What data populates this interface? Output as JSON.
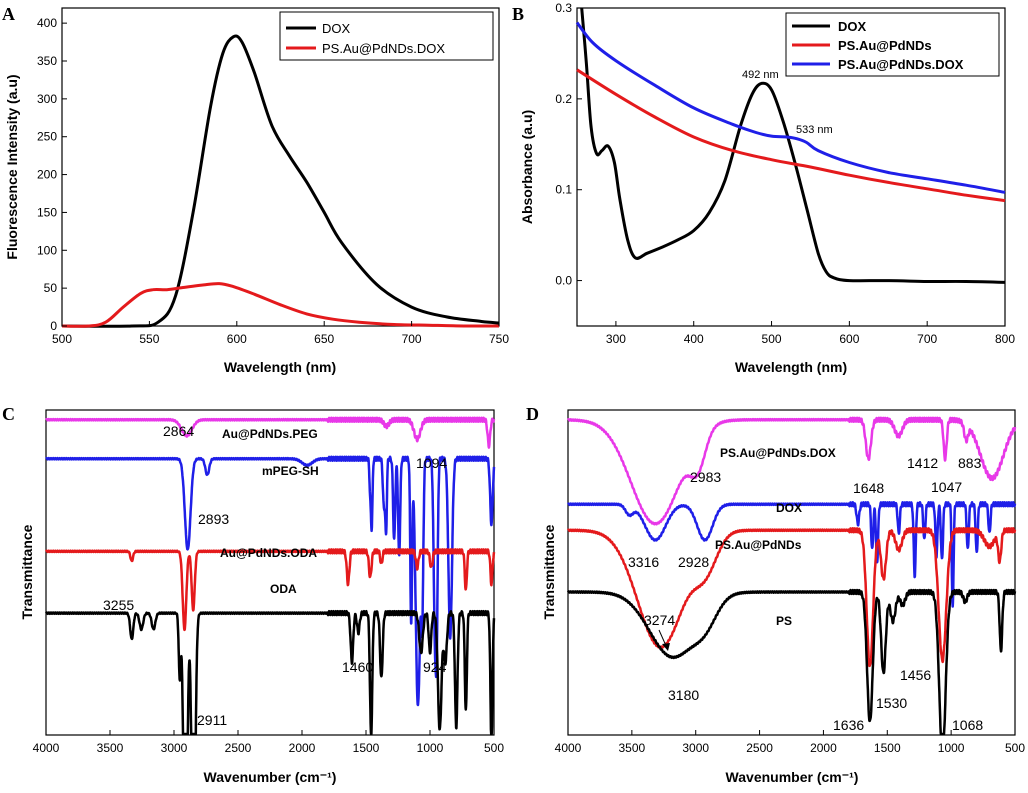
{
  "colors": {
    "black": "#000000",
    "red": "#e41a1c",
    "blue": "#1f1fe8",
    "magenta": "#e838e8"
  },
  "chart_data": [
    {
      "panel": "A",
      "type": "line",
      "xlabel": "Wavelength (nm)",
      "ylabel": "Fluorescence Intensity (a.u)",
      "xlim": [
        500,
        750
      ],
      "ylim": [
        0,
        420
      ],
      "xticks": [
        500,
        550,
        600,
        650,
        700,
        750
      ],
      "yticks": [
        0,
        50,
        100,
        150,
        200,
        250,
        300,
        350,
        400
      ],
      "legend": [
        "DOX",
        "PS.Au@PdNDs.DOX"
      ],
      "legend_position": "top-right",
      "series": [
        {
          "name": "DOX",
          "color": "#000000",
          "x": [
            500,
            540,
            555,
            565,
            575,
            585,
            592,
            598,
            603,
            610,
            620,
            630,
            640,
            650,
            660,
            680,
            700,
            720,
            740,
            750
          ],
          "y": [
            0,
            0,
            5,
            40,
            150,
            290,
            360,
            382,
            375,
            335,
            265,
            225,
            190,
            150,
            110,
            55,
            25,
            12,
            6,
            4
          ]
        },
        {
          "name": "PS.Au@PdNDs.DOX",
          "color": "#e41a1c",
          "x": [
            500,
            515,
            525,
            535,
            545,
            552,
            560,
            570,
            580,
            590,
            598,
            610,
            625,
            640,
            655,
            670,
            690,
            710,
            730,
            750
          ],
          "y": [
            0,
            0,
            5,
            25,
            43,
            48,
            48,
            51,
            54,
            56,
            52,
            42,
            28,
            16,
            9,
            5,
            2,
            1,
            0,
            0
          ]
        }
      ]
    },
    {
      "panel": "B",
      "type": "line",
      "xlabel": "Wavelength (nm)",
      "ylabel": "Absorbance (a.u)",
      "xlim": [
        250,
        800
      ],
      "ylim": [
        -0.05,
        0.3
      ],
      "xticks": [
        300,
        400,
        500,
        600,
        700,
        800
      ],
      "yticks": [
        0.0,
        0.1,
        0.2,
        0.3
      ],
      "ytick_labels": [
        "0.0",
        "0.1",
        "0.2",
        "0.3"
      ],
      "legend": [
        "DOX",
        "PS.Au@PdNDs",
        "PS.Au@PdNDs.DOX"
      ],
      "legend_position": "top-right",
      "annotations": [
        "492 nm",
        "533 nm"
      ],
      "series": [
        {
          "name": "DOX",
          "color": "#000000",
          "x": [
            256,
            262,
            268,
            275,
            282,
            290,
            298,
            305,
            315,
            325,
            340,
            360,
            380,
            400,
            420,
            440,
            460,
            475,
            487,
            500,
            515,
            530,
            545,
            560,
            570,
            580,
            600,
            650,
            700,
            750,
            800
          ],
          "y": [
            0.3,
            0.24,
            0.17,
            0.14,
            0.143,
            0.148,
            0.13,
            0.09,
            0.045,
            0.025,
            0.03,
            0.037,
            0.045,
            0.055,
            0.075,
            0.11,
            0.17,
            0.205,
            0.217,
            0.21,
            0.175,
            0.13,
            0.08,
            0.03,
            0.01,
            0.003,
            0.0,
            0.0,
            -0.001,
            -0.001,
            -0.002
          ]
        },
        {
          "name": "PS.Au@PdNDs",
          "color": "#e41a1c",
          "x": [
            250,
            300,
            350,
            400,
            450,
            500,
            550,
            600,
            650,
            700,
            750,
            800
          ],
          "y": [
            0.232,
            0.205,
            0.18,
            0.158,
            0.143,
            0.133,
            0.125,
            0.116,
            0.108,
            0.101,
            0.094,
            0.088
          ]
        },
        {
          "name": "PS.Au@PdNDs.DOX",
          "color": "#1f1fe8",
          "x": [
            250,
            270,
            300,
            350,
            400,
            450,
            480,
            500,
            520,
            533,
            545,
            560,
            600,
            650,
            700,
            750,
            800
          ],
          "y": [
            0.284,
            0.262,
            0.242,
            0.215,
            0.19,
            0.172,
            0.163,
            0.159,
            0.158,
            0.156,
            0.152,
            0.143,
            0.13,
            0.119,
            0.112,
            0.105,
            0.097
          ]
        }
      ]
    },
    {
      "panel": "C",
      "type": "line",
      "xlabel": "Wavenumber (cm⁻¹)",
      "ylabel": "Transmittance",
      "xlim": [
        4000,
        500
      ],
      "xticks": [
        4000,
        3500,
        3000,
        2500,
        2000,
        1500,
        1000,
        500
      ],
      "curve_labels": [
        "Au@PdNDs.PEG",
        "mPEG-SH",
        "Au@PdNDs.ODA",
        "ODA"
      ],
      "annotations": [
        "2864",
        "1094",
        "2893",
        "3255",
        "1460",
        "924",
        "2911"
      ],
      "series": [
        {
          "name": "Au@PdNDs.PEG",
          "color": "#e838e8",
          "baseline": 0.97,
          "dips": [
            {
              "x": 2900,
              "d": 0.05,
              "w": 40
            },
            {
              "x": 1100,
              "d": 0.06,
              "w": 25
            },
            {
              "x": 1340,
              "d": 0.02,
              "w": 20
            },
            {
              "x": 540,
              "d": 0.08,
              "w": 10
            }
          ]
        },
        {
          "name": "mPEG-SH",
          "color": "#1f1fe8",
          "baseline": 0.85,
          "dips": [
            {
              "x": 2893,
              "d": 0.28,
              "w": 22
            },
            {
              "x": 2740,
              "d": 0.05,
              "w": 15
            },
            {
              "x": 1960,
              "d": 0.02,
              "w": 40
            },
            {
              "x": 1467,
              "d": 0.1,
              "w": 6
            },
            {
              "x": 1455,
              "d": 0.2,
              "w": 6
            },
            {
              "x": 1360,
              "d": 0.15,
              "w": 8
            },
            {
              "x": 1343,
              "d": 0.22,
              "w": 6
            },
            {
              "x": 1280,
              "d": 0.25,
              "w": 8
            },
            {
              "x": 1241,
              "d": 0.3,
              "w": 8
            },
            {
              "x": 1147,
              "d": 0.5,
              "w": 7
            },
            {
              "x": 1094,
              "d": 0.76,
              "w": 18
            },
            {
              "x": 1060,
              "d": 0.4,
              "w": 8
            },
            {
              "x": 962,
              "d": 0.5,
              "w": 10
            },
            {
              "x": 947,
              "d": 0.45,
              "w": 8
            },
            {
              "x": 842,
              "d": 0.55,
              "w": 14
            },
            {
              "x": 520,
              "d": 0.2,
              "w": 10
            }
          ]
        },
        {
          "name": "Au@PdNDs.ODA",
          "color": "#e41a1c",
          "baseline": 0.565,
          "dips": [
            {
              "x": 3330,
              "d": 0.03,
              "w": 10
            },
            {
              "x": 2918,
              "d": 0.24,
              "w": 14
            },
            {
              "x": 2850,
              "d": 0.18,
              "w": 12
            },
            {
              "x": 1640,
              "d": 0.1,
              "w": 10
            },
            {
              "x": 1467,
              "d": 0.08,
              "w": 10
            },
            {
              "x": 1380,
              "d": 0.04,
              "w": 8
            },
            {
              "x": 1100,
              "d": 0.05,
              "w": 10
            },
            {
              "x": 990,
              "d": 0.05,
              "w": 10
            },
            {
              "x": 720,
              "d": 0.12,
              "w": 8
            },
            {
              "x": 520,
              "d": 0.1,
              "w": 8
            }
          ]
        },
        {
          "name": "ODA",
          "color": "#000000",
          "baseline": 0.375,
          "dips": [
            {
              "x": 3330,
              "d": 0.08,
              "w": 12
            },
            {
              "x": 3255,
              "d": 0.05,
              "w": 14
            },
            {
              "x": 3160,
              "d": 0.05,
              "w": 14
            },
            {
              "x": 2955,
              "d": 0.2,
              "w": 8
            },
            {
              "x": 2911,
              "d": 0.94,
              "w": 14
            },
            {
              "x": 2848,
              "d": 0.87,
              "w": 14
            },
            {
              "x": 1610,
              "d": 0.15,
              "w": 10
            },
            {
              "x": 1560,
              "d": 0.06,
              "w": 10
            },
            {
              "x": 1460,
              "d": 0.38,
              "w": 9
            },
            {
              "x": 1380,
              "d": 0.2,
              "w": 10
            },
            {
              "x": 1070,
              "d": 0.12,
              "w": 14
            },
            {
              "x": 1000,
              "d": 0.12,
              "w": 10
            },
            {
              "x": 924,
              "d": 0.36,
              "w": 14
            },
            {
              "x": 880,
              "d": 0.15,
              "w": 12
            },
            {
              "x": 795,
              "d": 0.35,
              "w": 10
            },
            {
              "x": 720,
              "d": 0.3,
              "w": 8
            },
            {
              "x": 520,
              "d": 0.4,
              "w": 8
            }
          ]
        }
      ]
    },
    {
      "panel": "D",
      "type": "line",
      "xlabel": "Wavenumber (cm⁻¹)",
      "ylabel": "Transmittance",
      "xlim": [
        4000,
        500
      ],
      "xticks": [
        4000,
        3500,
        3000,
        2500,
        2000,
        1500,
        1000,
        500
      ],
      "curve_labels": [
        "PS.Au@PdNDs.DOX",
        "DOX",
        "PS.Au@PdNDs",
        "PS"
      ],
      "annotations": [
        "2983",
        "1648",
        "1412",
        "1047",
        "883",
        "3316",
        "2928",
        "3274",
        "3180",
        "1636",
        "1530",
        "1456",
        "1068"
      ],
      "series": [
        {
          "name": "PS.Au@PdNDs.DOX",
          "color": "#e838e8",
          "baseline": 0.97,
          "dips": [
            {
              "x": 3316,
              "d": 0.32,
              "w": 190
            },
            {
              "x": 2983,
              "d": 0.1,
              "w": 60
            },
            {
              "x": 1648,
              "d": 0.12,
              "w": 20
            },
            {
              "x": 1412,
              "d": 0.05,
              "w": 30
            },
            {
              "x": 1047,
              "d": 0.12,
              "w": 12
            },
            {
              "x": 883,
              "d": 0.05,
              "w": 15
            },
            {
              "x": 680,
              "d": 0.18,
              "w": 90
            }
          ]
        },
        {
          "name": "DOX",
          "color": "#1f1fe8",
          "baseline": 0.71,
          "dips": [
            {
              "x": 3520,
              "d": 0.03,
              "w": 30
            },
            {
              "x": 3316,
              "d": 0.11,
              "w": 80
            },
            {
              "x": 2928,
              "d": 0.11,
              "w": 60
            },
            {
              "x": 1730,
              "d": 0.06,
              "w": 10
            },
            {
              "x": 1618,
              "d": 0.14,
              "w": 8
            },
            {
              "x": 1580,
              "d": 0.18,
              "w": 8
            },
            {
              "x": 1410,
              "d": 0.09,
              "w": 8
            },
            {
              "x": 1285,
              "d": 0.22,
              "w": 8
            },
            {
              "x": 1210,
              "d": 0.11,
              "w": 8
            },
            {
              "x": 1115,
              "d": 0.16,
              "w": 8
            },
            {
              "x": 1072,
              "d": 0.17,
              "w": 8
            },
            {
              "x": 988,
              "d": 0.32,
              "w": 7
            },
            {
              "x": 870,
              "d": 0.14,
              "w": 8
            },
            {
              "x": 800,
              "d": 0.15,
              "w": 8
            },
            {
              "x": 700,
              "d": 0.09,
              "w": 8
            }
          ]
        },
        {
          "name": "PS.Au@PdNDs",
          "color": "#e41a1c",
          "baseline": 0.63,
          "dips": [
            {
              "x": 3274,
              "d": 0.36,
              "w": 180
            },
            {
              "x": 2920,
              "d": 0.1,
              "w": 90
            },
            {
              "x": 1636,
              "d": 0.42,
              "w": 25
            },
            {
              "x": 1530,
              "d": 0.15,
              "w": 20
            },
            {
              "x": 1410,
              "d": 0.06,
              "w": 25
            },
            {
              "x": 1068,
              "d": 0.4,
              "w": 30
            },
            {
              "x": 700,
              "d": 0.05,
              "w": 40
            },
            {
              "x": 620,
              "d": 0.09,
              "w": 12
            }
          ]
        },
        {
          "name": "PS",
          "color": "#000000",
          "baseline": 0.44,
          "dips": [
            {
              "x": 3180,
              "d": 0.2,
              "w": 180
            },
            {
              "x": 2920,
              "d": 0.06,
              "w": 90
            },
            {
              "x": 1636,
              "d": 0.4,
              "w": 22
            },
            {
              "x": 1530,
              "d": 0.25,
              "w": 18
            },
            {
              "x": 1456,
              "d": 0.09,
              "w": 20
            },
            {
              "x": 1380,
              "d": 0.04,
              "w": 20
            },
            {
              "x": 1068,
              "d": 0.5,
              "w": 25
            },
            {
              "x": 890,
              "d": 0.03,
              "w": 15
            },
            {
              "x": 610,
              "d": 0.18,
              "w": 10
            }
          ]
        }
      ]
    }
  ]
}
